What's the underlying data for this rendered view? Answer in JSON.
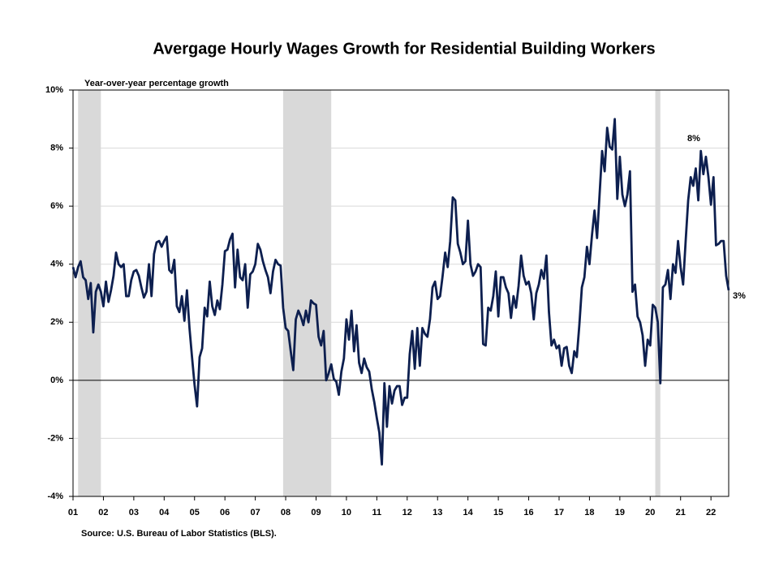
{
  "chart_data": {
    "type": "line",
    "title": "Avergage Hourly Wages Growth for Residential Building Workers",
    "y_axis_label": "Year-over-year percentage growth",
    "source": "Source: U.S. Bureau of Labor Statistics (BLS).",
    "annotations": [
      "8%",
      "3%"
    ],
    "color": "#0d1f4f",
    "recession_color": "#d9d9d9",
    "recessions": [
      [
        2,
        11
      ],
      [
        83,
        102
      ],
      [
        230,
        232
      ]
    ],
    "grid": true,
    "ylim": [
      -4,
      10
    ],
    "yticks": [
      {
        "value": -4,
        "label": "-4%"
      },
      {
        "value": -2,
        "label": "-2%"
      },
      {
        "value": 0,
        "label": "0%"
      },
      {
        "value": 2,
        "label": "2%"
      },
      {
        "value": 4,
        "label": "4%"
      },
      {
        "value": 6,
        "label": "6%"
      },
      {
        "value": 8,
        "label": "8%"
      },
      {
        "value": 10,
        "label": "10%"
      }
    ],
    "categories": [
      "01",
      null,
      null,
      null,
      null,
      null,
      null,
      null,
      null,
      null,
      null,
      null,
      "02",
      null,
      null,
      null,
      null,
      null,
      null,
      null,
      null,
      null,
      null,
      null,
      "03",
      null,
      null,
      null,
      null,
      null,
      null,
      null,
      null,
      null,
      null,
      null,
      "04",
      null,
      null,
      null,
      null,
      null,
      null,
      null,
      null,
      null,
      null,
      null,
      "05",
      null,
      null,
      null,
      null,
      null,
      null,
      null,
      null,
      null,
      null,
      null,
      "06",
      null,
      null,
      null,
      null,
      null,
      null,
      null,
      null,
      null,
      null,
      null,
      "07",
      null,
      null,
      null,
      null,
      null,
      null,
      null,
      null,
      null,
      null,
      null,
      "08",
      null,
      null,
      null,
      null,
      null,
      null,
      null,
      null,
      null,
      null,
      null,
      "09",
      null,
      null,
      null,
      null,
      null,
      null,
      null,
      null,
      null,
      null,
      null,
      "10",
      null,
      null,
      null,
      null,
      null,
      null,
      null,
      null,
      null,
      null,
      null,
      "11",
      null,
      null,
      null,
      null,
      null,
      null,
      null,
      null,
      null,
      null,
      null,
      "12",
      null,
      null,
      null,
      null,
      null,
      null,
      null,
      null,
      null,
      null,
      null,
      "13",
      null,
      null,
      null,
      null,
      null,
      null,
      null,
      null,
      null,
      null,
      null,
      "14",
      null,
      null,
      null,
      null,
      null,
      null,
      null,
      null,
      null,
      null,
      null,
      "15",
      null,
      null,
      null,
      null,
      null,
      null,
      null,
      null,
      null,
      null,
      null,
      "16",
      null,
      null,
      null,
      null,
      null,
      null,
      null,
      null,
      null,
      null,
      null,
      "17",
      null,
      null,
      null,
      null,
      null,
      null,
      null,
      null,
      null,
      null,
      null,
      "18",
      null,
      null,
      null,
      null,
      null,
      null,
      null,
      null,
      null,
      null,
      null,
      "19",
      null,
      null,
      null,
      null,
      null,
      null,
      null,
      null,
      null,
      null,
      null,
      "20",
      null,
      null,
      null,
      null,
      null,
      null,
      null,
      null,
      null,
      null,
      null,
      "21",
      null,
      null,
      null,
      null,
      null,
      null,
      null,
      null,
      null,
      null,
      null,
      "22",
      null,
      null,
      null,
      null,
      null,
      null,
      null
    ],
    "values": [
      3.9,
      3.55,
      3.9,
      4.1,
      3.55,
      3.45,
      2.8,
      3.35,
      1.65,
      3.05,
      3.3,
      3.05,
      2.55,
      3.4,
      2.7,
      3.1,
      3.6,
      4.4,
      4.0,
      3.9,
      4.0,
      2.9,
      2.9,
      3.45,
      3.75,
      3.8,
      3.6,
      3.2,
      2.85,
      3.05,
      4.0,
      2.9,
      4.35,
      4.75,
      4.8,
      4.6,
      4.8,
      4.95,
      3.8,
      3.7,
      4.15,
      2.55,
      2.35,
      2.9,
      2.05,
      3.1,
      1.8,
      0.8,
      -0.15,
      -0.9,
      0.8,
      1.1,
      2.5,
      2.2,
      3.4,
      2.55,
      2.25,
      2.75,
      2.45,
      3.3,
      4.45,
      4.5,
      4.85,
      5.05,
      3.2,
      4.5,
      3.55,
      3.45,
      4.0,
      2.5,
      3.65,
      3.75,
      4.0,
      4.7,
      4.5,
      4.1,
      3.8,
      3.55,
      3.0,
      3.75,
      4.15,
      4.0,
      3.95,
      2.5,
      1.8,
      1.7,
      1.0,
      0.35,
      2.1,
      2.4,
      2.2,
      1.9,
      2.4,
      2.0,
      2.75,
      2.65,
      2.6,
      1.5,
      1.2,
      1.7,
      0.0,
      0.25,
      0.55,
      0.05,
      -0.05,
      -0.5,
      0.3,
      0.75,
      2.1,
      1.4,
      2.4,
      1.0,
      1.9,
      0.6,
      0.25,
      0.75,
      0.45,
      0.3,
      -0.3,
      -0.75,
      -1.3,
      -1.8,
      -2.9,
      -0.1,
      -1.6,
      -0.2,
      -0.8,
      -0.35,
      -0.2,
      -0.2,
      -0.85,
      -0.6,
      -0.6,
      0.9,
      1.7,
      0.4,
      1.8,
      0.5,
      1.8,
      1.6,
      1.5,
      2.1,
      3.2,
      3.4,
      2.8,
      2.9,
      3.6,
      4.4,
      3.9,
      4.8,
      6.3,
      6.2,
      4.7,
      4.4,
      4.0,
      4.1,
      5.5,
      4.0,
      3.6,
      3.75,
      4.0,
      3.9,
      1.25,
      1.2,
      2.5,
      2.4,
      2.9,
      3.75,
      2.2,
      3.55,
      3.55,
      3.2,
      3.0,
      2.15,
      2.9,
      2.5,
      3.25,
      4.3,
      3.6,
      3.3,
      3.4,
      3.0,
      2.1,
      3.0,
      3.3,
      3.8,
      3.5,
      4.3,
      2.35,
      1.2,
      1.4,
      1.1,
      1.2,
      0.5,
      1.1,
      1.15,
      0.5,
      0.25,
      1.0,
      0.8,
      1.9,
      3.2,
      3.55,
      4.6,
      4.0,
      5.0,
      5.85,
      4.9,
      6.4,
      7.9,
      7.2,
      8.7,
      8.05,
      7.95,
      9.0,
      6.25,
      7.7,
      6.4,
      6.0,
      6.4,
      7.2,
      3.05,
      3.3,
      2.2,
      2.0,
      1.55,
      0.5,
      1.4,
      1.2,
      2.6,
      2.5,
      2.0,
      -0.1,
      3.2,
      3.3,
      3.8,
      2.8,
      4.0,
      3.7,
      4.8,
      3.9,
      3.3,
      4.8,
      6.2,
      7.0,
      6.7,
      7.3,
      6.2,
      7.9,
      7.1,
      7.7,
      7.0,
      6.05,
      7.0,
      4.65,
      4.7,
      4.8,
      4.8,
      3.6,
      3.1
    ]
  }
}
